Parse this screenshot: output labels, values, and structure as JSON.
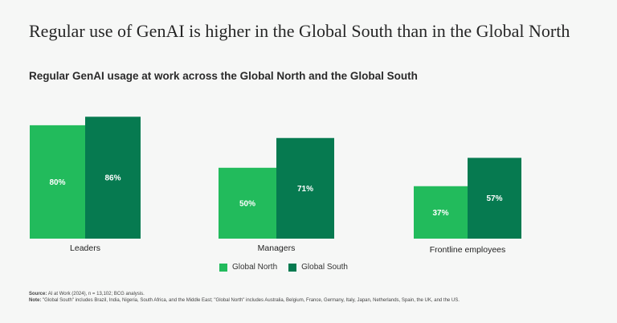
{
  "title": "Regular use of GenAI is higher in the Global South than in the Global North",
  "chart_data": {
    "type": "bar",
    "title": "Regular GenAI usage at work across the Global North and the Global South",
    "categories": [
      "Leaders",
      "Managers",
      "Frontline employees"
    ],
    "series": [
      {
        "name": "Global North",
        "values": [
          80,
          50,
          37
        ],
        "color": "#22bb5c"
      },
      {
        "name": "Global South",
        "values": [
          86,
          71,
          57
        ],
        "color": "#067a50"
      }
    ],
    "value_suffix": "%",
    "ylim": [
      0,
      100
    ],
    "grid": false,
    "legend": "bottom-center"
  },
  "legend": {
    "north": "Global North",
    "south": "Global South"
  },
  "notes": {
    "source_label": "Source:",
    "source_text": "AI at Work (2024), n = 13,102; BCG analysis.",
    "note_label": "Note:",
    "note_text": "\"Global South\" includes Brazil, India, Nigeria, South Africa, and the Middle East; \"Global North\" includes Australia, Belgium, France, Germany, Italy, Japan, Netherlands, Spain, the UK, and the US."
  }
}
